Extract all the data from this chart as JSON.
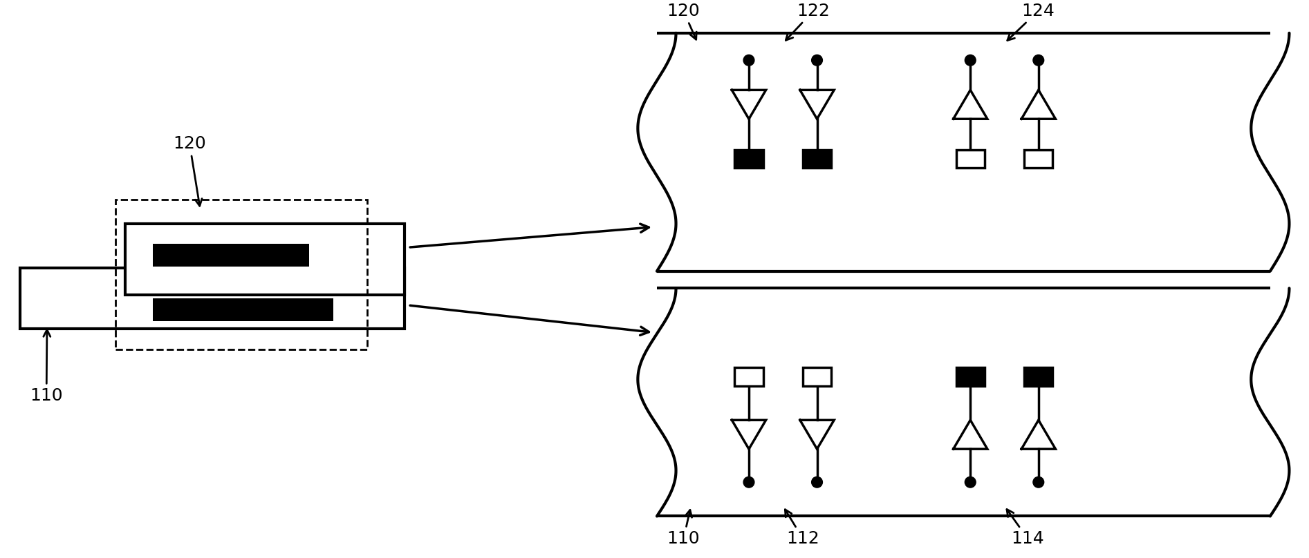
{
  "bg_color": "#ffffff",
  "line_color": "#000000",
  "lw_main": 2.5,
  "lw_thick": 3.0,
  "lw_dashed": 2.0,
  "label_fs": 18,
  "tri_lw": 2.5,
  "dot_r": 0.08
}
